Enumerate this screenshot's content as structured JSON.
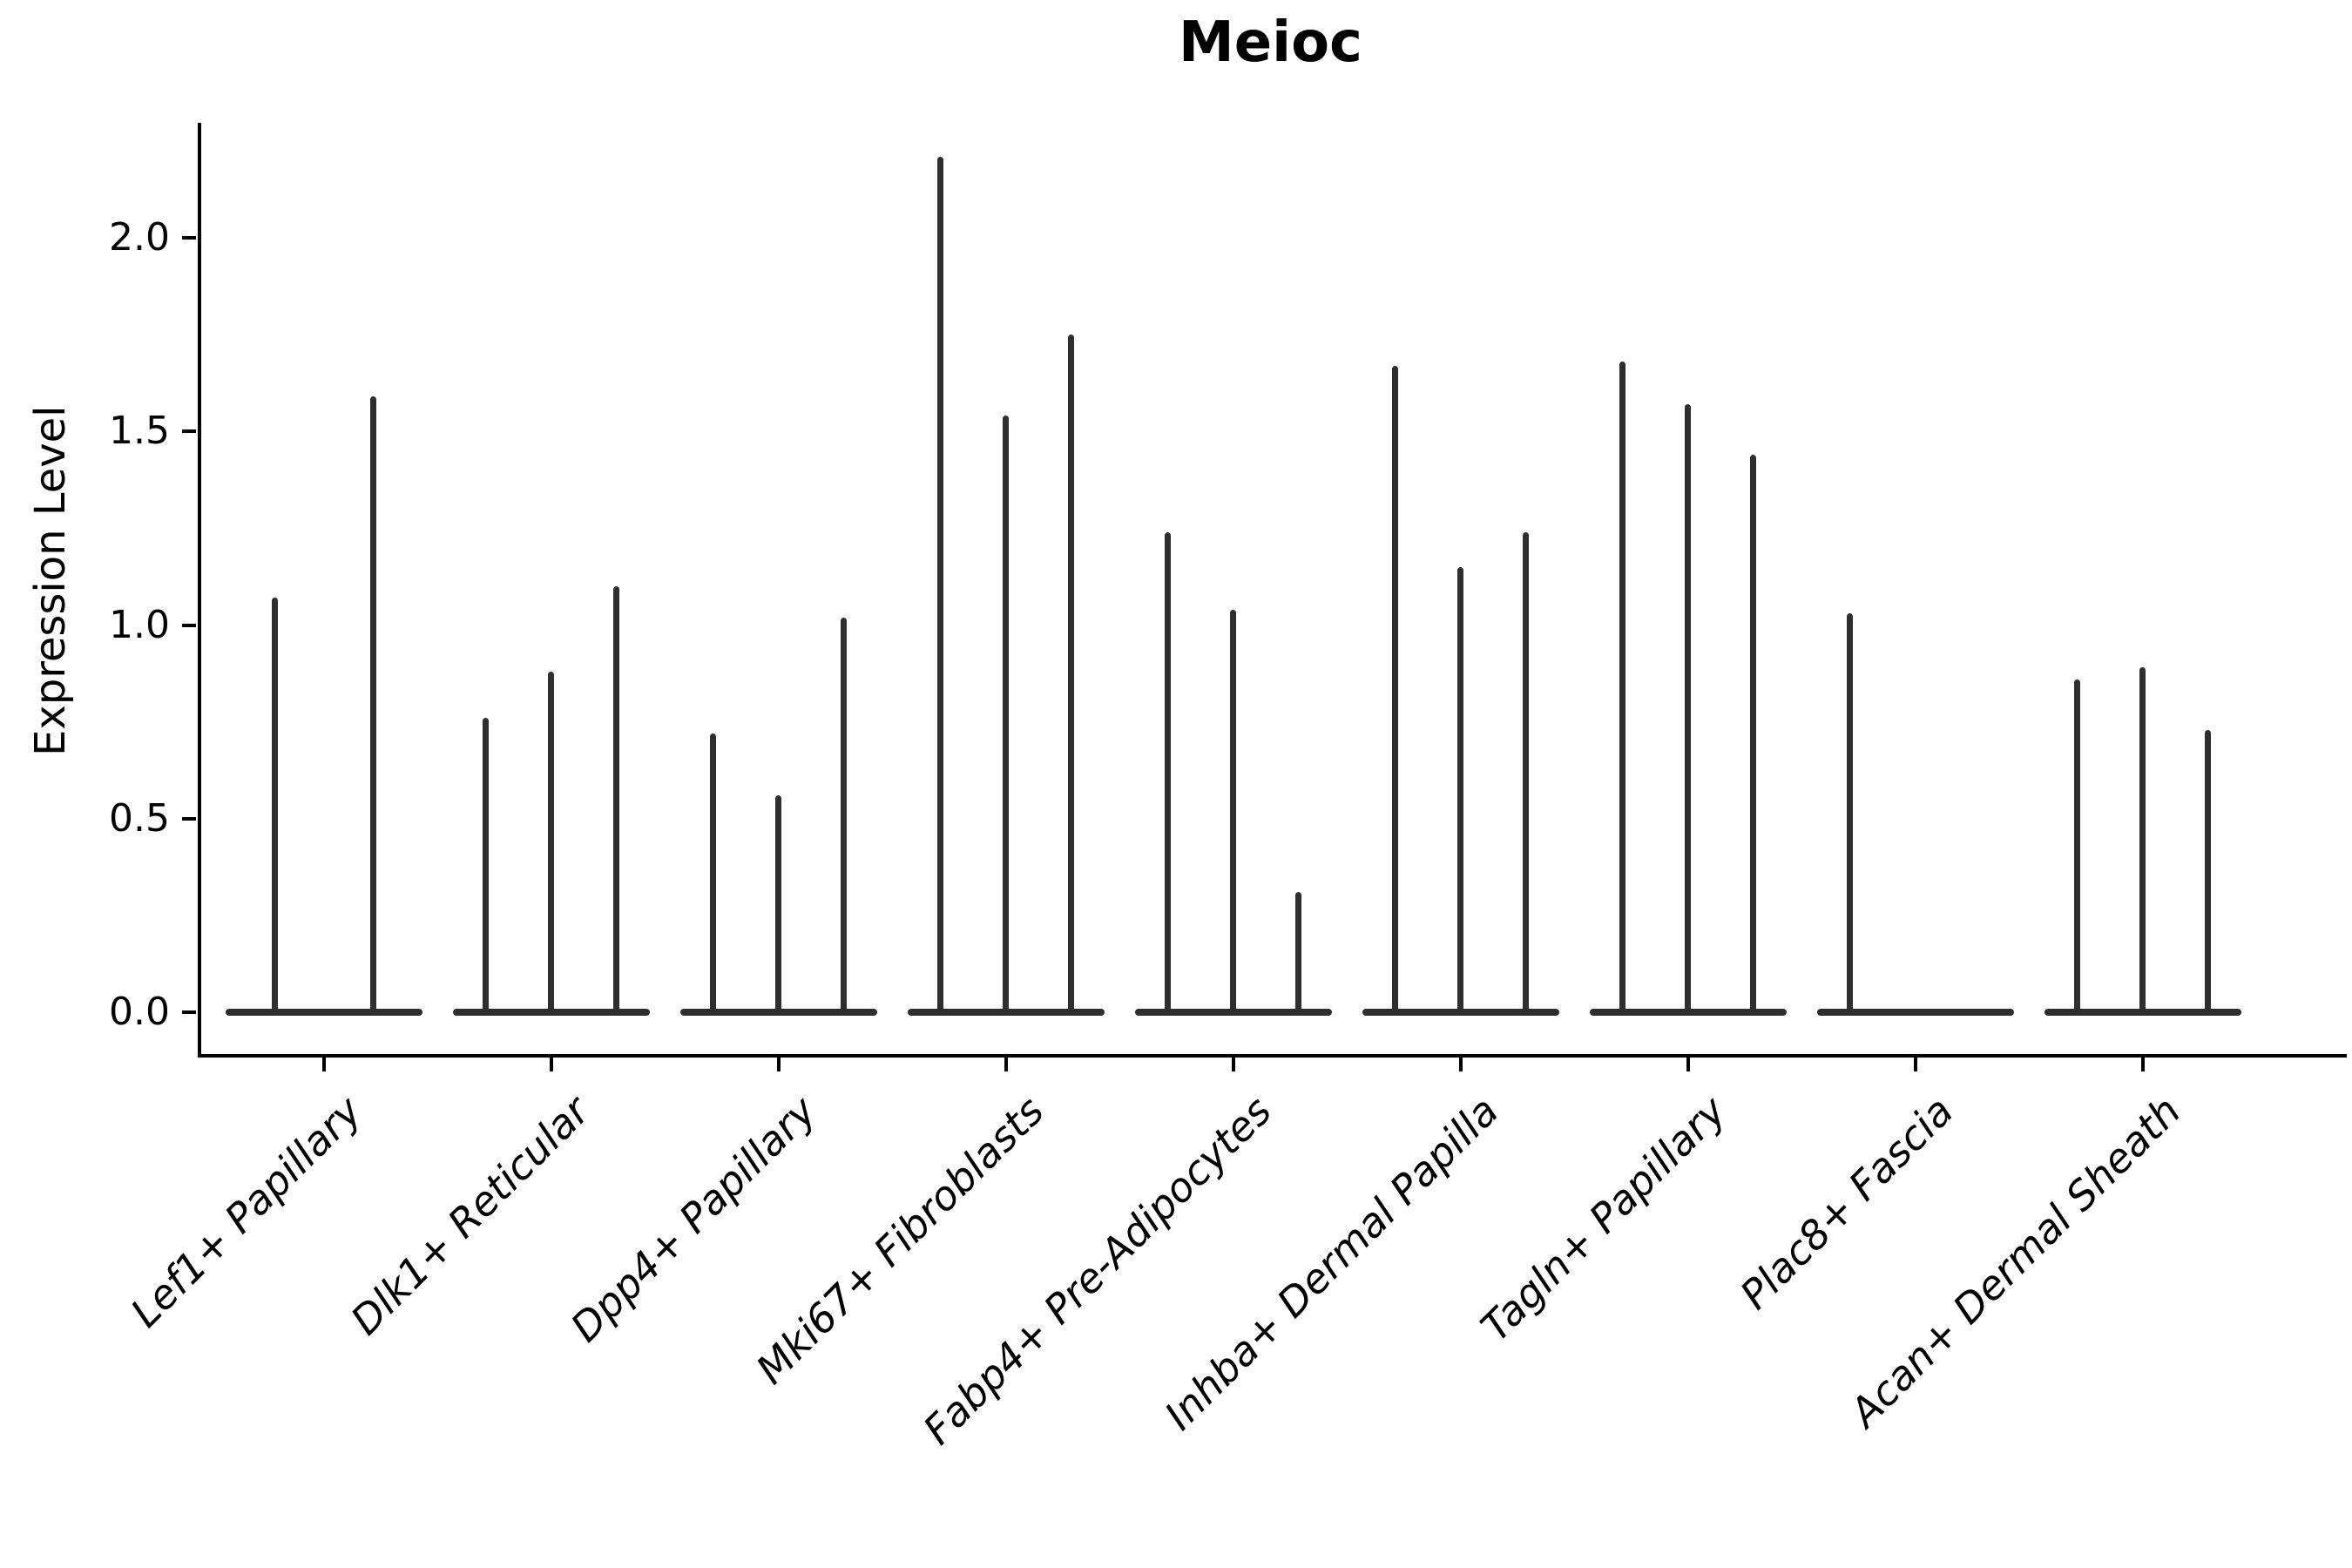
{
  "chart_data": {
    "type": "violin",
    "title": "Meioc",
    "ylabel": "Expression Level",
    "xlabel": "",
    "ylim": [
      -0.11,
      2.3
    ],
    "ytick_labels": [
      "0.0",
      "0.5",
      "1.0",
      "1.5",
      "2.0"
    ],
    "ytick_values": [
      0.0,
      0.5,
      1.0,
      1.5,
      2.0
    ],
    "grid": false,
    "legend": "none",
    "baseline_value": 0.0,
    "description": "Thin violin plots; dense mass at 0 forms a flat base, single narrow spike rises to each violin's maximum expression value",
    "categories": [
      "Lef1+ Papillary",
      "Dlk1+ Reticular",
      "Dpp4+ Papillary",
      "Mki67+ Fibroblasts",
      "Fabp4+ Pre-Adipocytes",
      "Inhba+ Dermal Papilla",
      "Tagln+ Papillary",
      "Plac8+ Fascia",
      "Acan+ Dermal Sheath"
    ],
    "groups": [
      {
        "label": "Lef1+ Papillary",
        "violin_peaks": [
          1.07,
          1.59
        ]
      },
      {
        "label": "Dlk1+ Reticular",
        "violin_peaks": [
          0.76,
          0.88,
          1.1
        ]
      },
      {
        "label": "Dpp4+ Papillary",
        "violin_peaks": [
          0.72,
          0.56,
          1.02
        ]
      },
      {
        "label": "Mki67+ Fibroblasts",
        "violin_peaks": [
          2.21,
          1.54,
          1.75
        ]
      },
      {
        "label": "Fabp4+ Pre-Adipocytes",
        "violin_peaks": [
          1.24,
          1.04,
          0.31
        ]
      },
      {
        "label": "Inhba+ Dermal Papilla",
        "violin_peaks": [
          1.67,
          1.15,
          1.24
        ]
      },
      {
        "label": "Tagln+ Papillary",
        "violin_peaks": [
          1.68,
          1.57,
          1.44
        ]
      },
      {
        "label": "Plac8+ Fascia",
        "violin_peaks": [
          1.03,
          0,
          0
        ]
      },
      {
        "label": "Acan+ Dermal Sheath",
        "violin_peaks": [
          0.86,
          0.89,
          0.73
        ]
      }
    ],
    "colors": {
      "violin": "#2e2e2e",
      "axis": "#000000",
      "text": "#000000",
      "background": "#ffffff"
    }
  }
}
